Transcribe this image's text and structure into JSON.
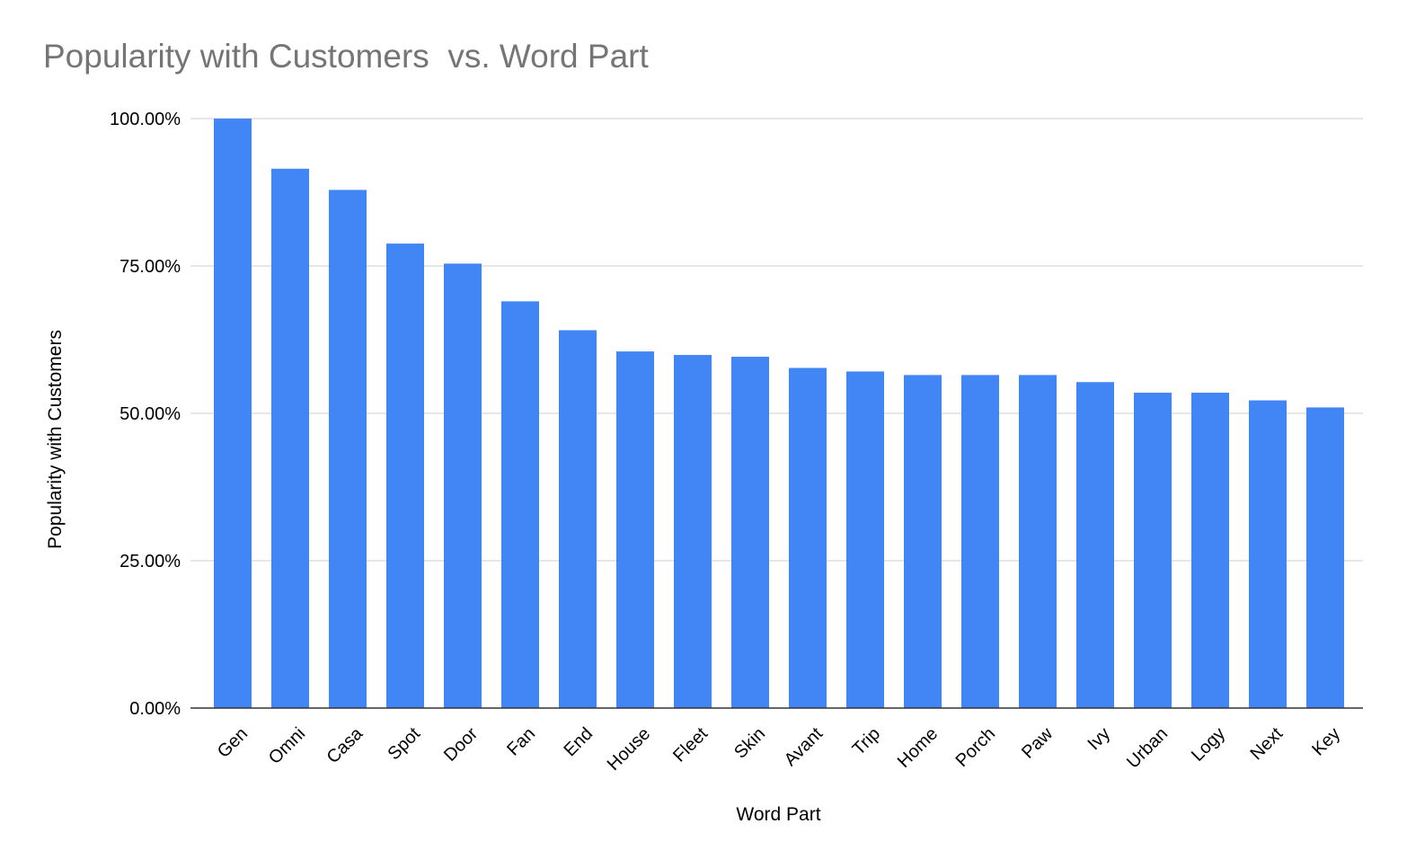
{
  "chart_data": {
    "type": "bar",
    "title": "Popularity with Customers  vs. Word Part",
    "xlabel": "Word Part",
    "ylabel": "Popularity with Customers",
    "categories": [
      "Gen",
      "Omni",
      "Casa",
      "Spot",
      "Door",
      "Fan",
      "End",
      "House",
      "Fleet",
      "Skin",
      "Avant",
      "Trip",
      "Home",
      "Porch",
      "Paw",
      "Ivy",
      "Urban",
      "Logy",
      "Next",
      "Key"
    ],
    "values": [
      100.0,
      91.5,
      87.9,
      78.8,
      75.4,
      69.0,
      64.1,
      60.5,
      59.9,
      59.6,
      57.7,
      57.1,
      56.5,
      56.5,
      56.5,
      55.3,
      53.5,
      53.5,
      52.2,
      51.0
    ],
    "ylim": [
      0,
      100
    ],
    "yticks": [
      0,
      25,
      50,
      75,
      100
    ],
    "ytick_labels": [
      "0.00%",
      "25.00%",
      "50.00%",
      "75.00%",
      "100.00%"
    ],
    "grid": true,
    "legend": "none",
    "bar_color": "#4285f4",
    "grid_color": "#cccccc",
    "axis_color": "#333333"
  }
}
